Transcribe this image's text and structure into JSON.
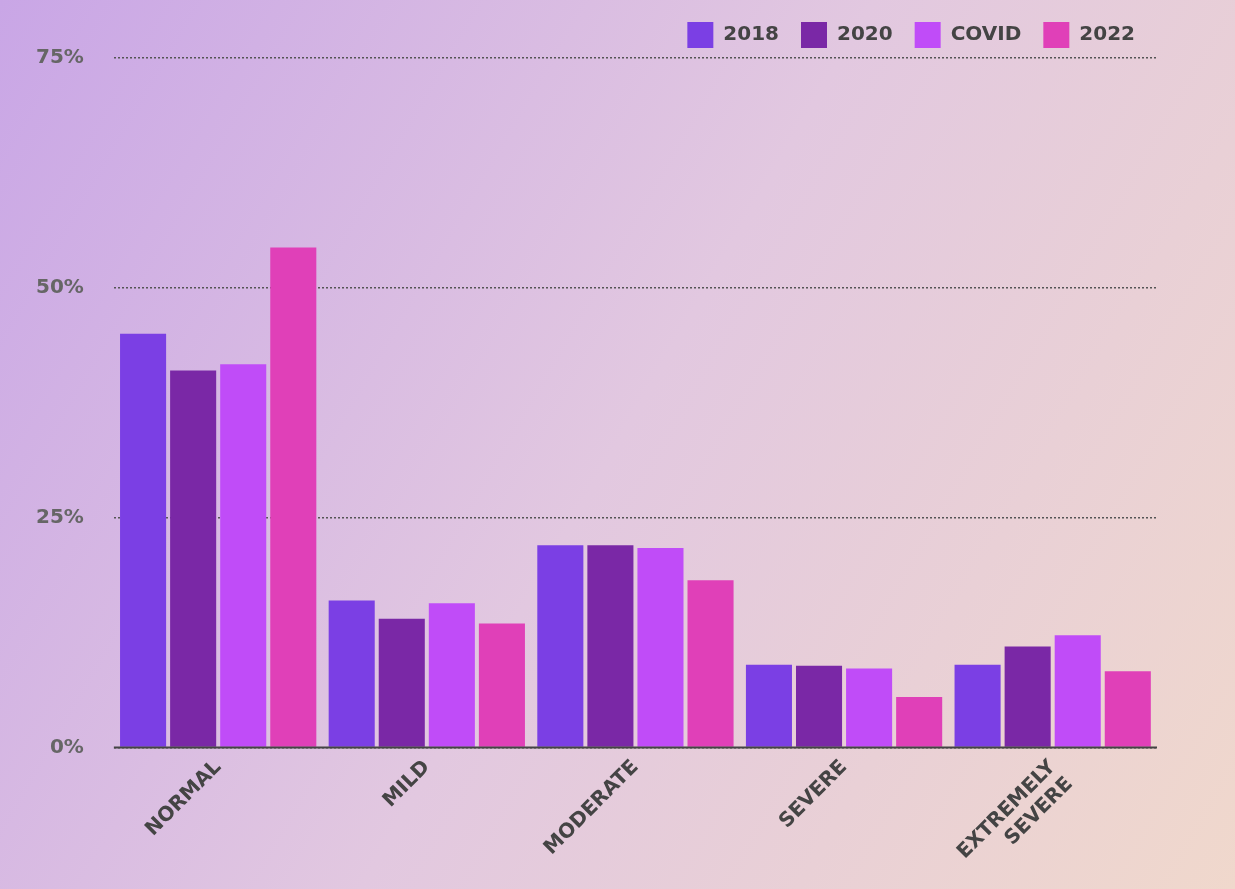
{
  "chart_data": {
    "type": "bar",
    "categories": [
      "NORMAL",
      "MILD",
      "MODERATE",
      "SEVERE",
      "EXTREMELY SEVERE"
    ],
    "series": [
      {
        "name": "2018",
        "color": "#7b3fe4",
        "values": [
          45,
          16,
          22,
          9,
          9
        ]
      },
      {
        "name": "2020",
        "color": "#7a28a6",
        "values": [
          41,
          14,
          22,
          8.9,
          11
        ]
      },
      {
        "name": "COVID",
        "color": "#c04cf8",
        "values": [
          41.7,
          15.7,
          21.7,
          8.6,
          12.2
        ]
      },
      {
        "name": "2022",
        "color": "#e040b8",
        "values": [
          54.4,
          13.5,
          18.2,
          5.5,
          8.3
        ]
      }
    ],
    "ylim": [
      0,
      75
    ],
    "yticks": [
      {
        "value": 0,
        "label": "0%"
      },
      {
        "value": 25,
        "label": "25%"
      },
      {
        "value": 50,
        "label": "50%"
      },
      {
        "value": 75,
        "label": "75%"
      }
    ],
    "grid": "y",
    "legend": "top right"
  }
}
